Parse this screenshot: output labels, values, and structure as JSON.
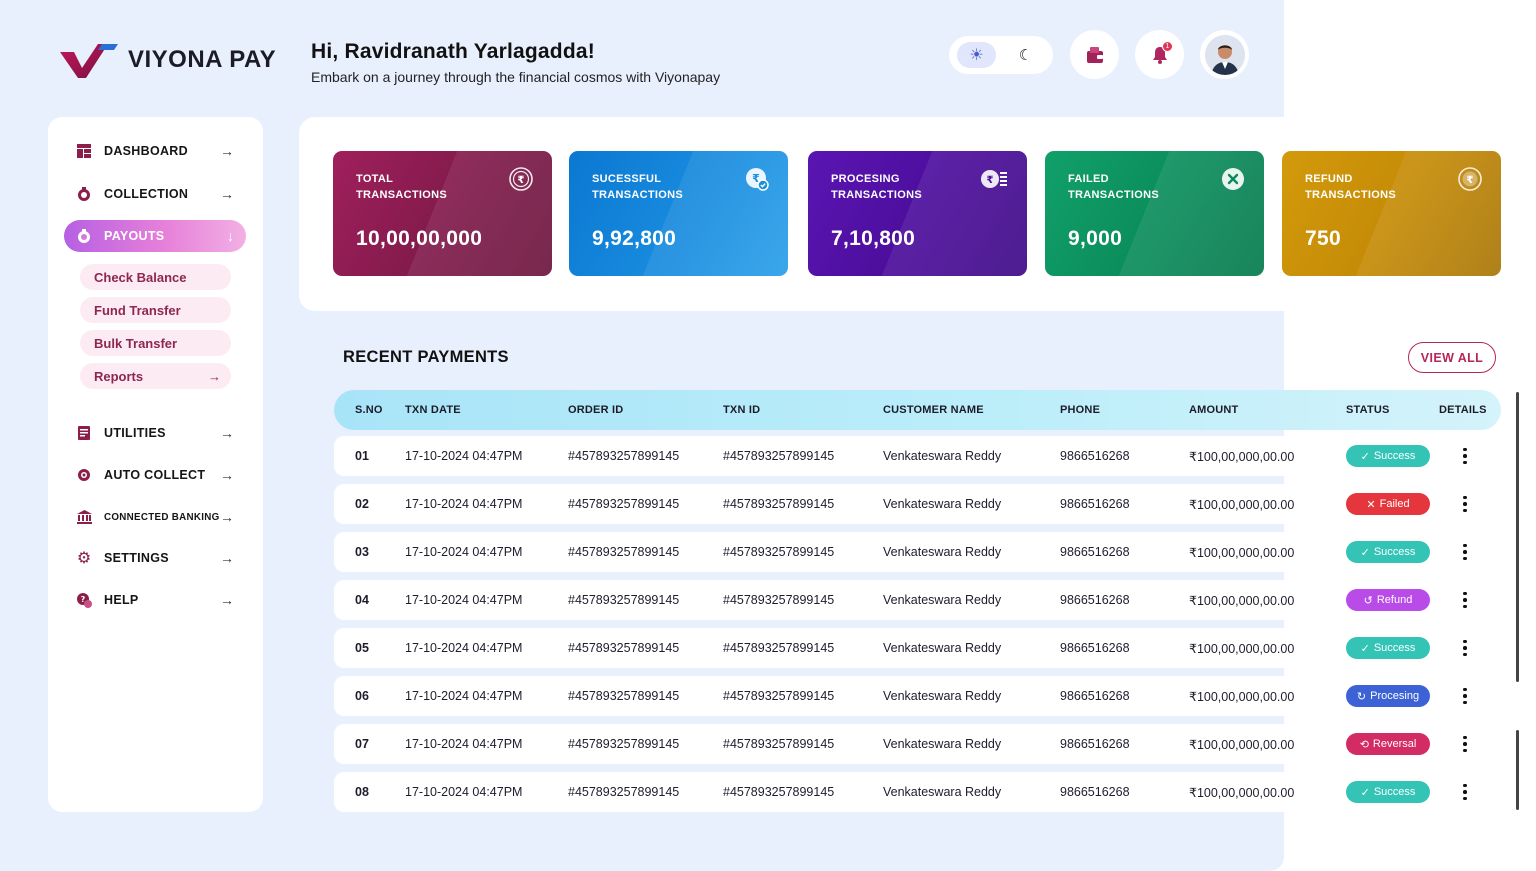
{
  "brand": {
    "name": "VIYONA PAY"
  },
  "header": {
    "greeting": "Hi, Ravidranath Yarlagadda!",
    "subtitle": "Embark on a journey through the financial cosmos with Viyonapay",
    "notification_count": "1"
  },
  "sidebar": {
    "items": [
      {
        "label": "DASHBOARD",
        "icon": "dashboard-icon"
      },
      {
        "label": "COLLECTION",
        "icon": "collection-icon"
      },
      {
        "label": "PAYOUTS",
        "icon": "payouts-icon",
        "active": true
      },
      {
        "label": "UTILITIES",
        "icon": "utilities-icon"
      },
      {
        "label": "AUTO COLLECT",
        "icon": "auto-collect-icon"
      },
      {
        "label": "CONNECTED BANKING",
        "icon": "bank-icon"
      },
      {
        "label": "SETTINGS",
        "icon": "gear-icon"
      },
      {
        "label": "HELP",
        "icon": "help-icon"
      }
    ],
    "payouts_sub": [
      {
        "label": "Check Balance"
      },
      {
        "label": "Fund Transfer"
      },
      {
        "label": "Bulk Transfer"
      },
      {
        "label": "Reports"
      }
    ]
  },
  "cards": [
    {
      "title_line1": "TOTAL",
      "title_line2": "TRANSACTIONS",
      "value": "10,00,00,000",
      "color": "#7d1a49"
    },
    {
      "title_line1": "SUCESSFUL",
      "title_line2": "TRANSACTIONS",
      "value": "9,92,800",
      "color": "#1483d6"
    },
    {
      "title_line1": "PROCESING",
      "title_line2": "TRANSACTIONS",
      "value": "7,10,800",
      "color": "#4a0d99"
    },
    {
      "title_line1": "FAILED",
      "title_line2": "TRANSACTIONS",
      "value": "9,000",
      "color": "#0a8a5a"
    },
    {
      "title_line1": "REFUND",
      "title_line2": "TRANSACTIONS",
      "value": "750",
      "color": "#c48a06"
    }
  ],
  "recent": {
    "title": "RECENT PAYMENTS",
    "view_all": "VIEW ALL",
    "columns": [
      "S.NO",
      "TXN DATE",
      "ORDER ID",
      "TXN ID",
      "CUSTOMER NAME",
      "PHONE",
      "AMOUNT",
      "STATUS",
      "DETAILS"
    ],
    "rows": [
      {
        "sno": "01",
        "date": "17-10-2024 04:47PM",
        "order": "#457893257899145",
        "txn": "#457893257899145",
        "name": "Venkateswara Reddy",
        "phone": "9866516268",
        "amount": "₹100,00,000,00.00",
        "status": "Success"
      },
      {
        "sno": "02",
        "date": "17-10-2024 04:47PM",
        "order": "#457893257899145",
        "txn": "#457893257899145",
        "name": "Venkateswara Reddy",
        "phone": "9866516268",
        "amount": "₹100,00,000,00.00",
        "status": "Failed"
      },
      {
        "sno": "03",
        "date": "17-10-2024 04:47PM",
        "order": "#457893257899145",
        "txn": "#457893257899145",
        "name": "Venkateswara Reddy",
        "phone": "9866516268",
        "amount": "₹100,00,000,00.00",
        "status": "Success"
      },
      {
        "sno": "04",
        "date": "17-10-2024 04:47PM",
        "order": "#457893257899145",
        "txn": "#457893257899145",
        "name": "Venkateswara Reddy",
        "phone": "9866516268",
        "amount": "₹100,00,000,00.00",
        "status": "Refund"
      },
      {
        "sno": "05",
        "date": "17-10-2024 04:47PM",
        "order": "#457893257899145",
        "txn": "#457893257899145",
        "name": "Venkateswara Reddy",
        "phone": "9866516268",
        "amount": "₹100,00,000,00.00",
        "status": "Success"
      },
      {
        "sno": "06",
        "date": "17-10-2024 04:47PM",
        "order": "#457893257899145",
        "txn": "#457893257899145",
        "name": "Venkateswara Reddy",
        "phone": "9866516268",
        "amount": "₹100,00,000,00.00",
        "status": "Procesing"
      },
      {
        "sno": "07",
        "date": "17-10-2024 04:47PM",
        "order": "#457893257899145",
        "txn": "#457893257899145",
        "name": "Venkateswara Reddy",
        "phone": "9866516268",
        "amount": "₹100,00,000,00.00",
        "status": "Reversal"
      },
      {
        "sno": "08",
        "date": "17-10-2024 04:47PM",
        "order": "#457893257899145",
        "txn": "#457893257899145",
        "name": "Venkateswara Reddy",
        "phone": "9866516268",
        "amount": "₹100,00,000,00.00",
        "status": "Success"
      }
    ]
  },
  "status_colors": {
    "Success": "#33c4b5",
    "Failed": "#e5363d",
    "Refund": "#b94ce8",
    "Procesing": "#3c62d6",
    "Reversal": "#d32b63"
  }
}
